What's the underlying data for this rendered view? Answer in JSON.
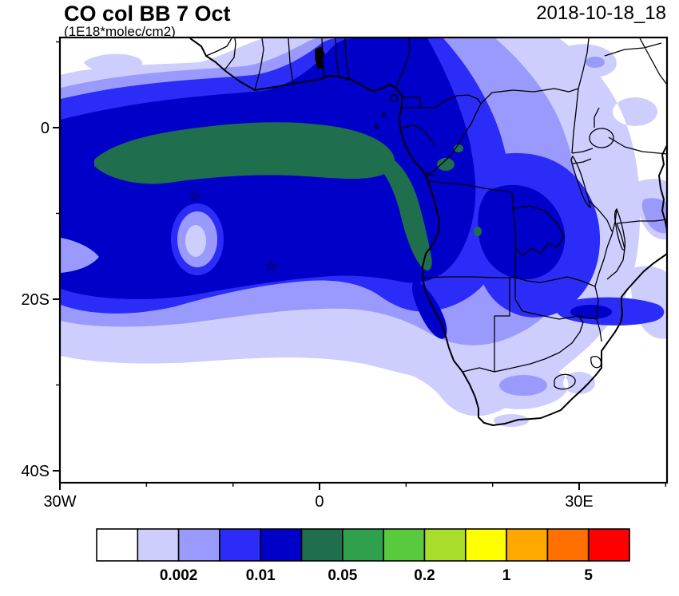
{
  "title": "CO col BB 7 Oct",
  "subtitle": "(1E18*molec/cm2)",
  "date_label": "2018-10-18_18",
  "map": {
    "x_axis": {
      "ticks": [
        {
          "label": "30W",
          "lon": -30
        },
        {
          "label": "0",
          "lon": 0
        },
        {
          "label": "30E",
          "lon": 30
        }
      ],
      "minor_lons": [
        -20,
        -10,
        10,
        20,
        40
      ]
    },
    "y_axis": {
      "ticks": [
        {
          "label": "0",
          "lat": 0
        },
        {
          "label": "20S",
          "lat": -20
        },
        {
          "label": "40S",
          "lat": -40
        }
      ],
      "minor_lats": [
        10,
        -10,
        -30
      ]
    }
  },
  "colorbar": {
    "boundary_labels": [
      {
        "label": "0.002",
        "boundary_index": 2
      },
      {
        "label": "0.01",
        "boundary_index": 4
      },
      {
        "label": "0.05",
        "boundary_index": 6
      },
      {
        "label": "0.2",
        "boundary_index": 8
      },
      {
        "label": "1",
        "boundary_index": 10
      },
      {
        "label": "5",
        "boundary_index": 12
      }
    ]
  },
  "chart_data": {
    "type": "heatmap",
    "title": "CO col BB 7 Oct",
    "units": "1E18*molec/cm2",
    "run_label": "2018-10-18_18",
    "variable": "CO column from biomass burning (filled contours over Africa / South Atlantic)",
    "projection": "lat-lon",
    "lon_range": [
      -30,
      40
    ],
    "lat_range": [
      -41.4,
      10.5
    ],
    "contour_levels": [
      0.001,
      0.002,
      0.005,
      0.01,
      0.02,
      0.05,
      0.1,
      0.2,
      0.5,
      1,
      2,
      5
    ],
    "labeled_levels": [
      "0.002",
      "0.01",
      "0.05",
      "0.2",
      "1",
      "5"
    ],
    "palette": [
      "#ffffff",
      "#cdcdfe",
      "#9a9afc",
      "#2c2cf8",
      "#0000c8",
      "#1f6e4e",
      "#2fa14d",
      "#59c93e",
      "#a8dd2c",
      "#ffff00",
      "#ffa900",
      "#ff7000",
      "#fd0000"
    ],
    "legend_position": "bottom",
    "grid": "off",
    "markers": [
      {
        "type": "star",
        "lon": -14.4,
        "lat": -7.9
      },
      {
        "type": "star",
        "lon": -5.6,
        "lat": -16.1
      }
    ],
    "features": [
      {
        "level_range": "0.05-0.2",
        "color": "#1f6e4e",
        "description": "Elongated maximum over the eastern tropical Atlantic from ~26W to ~8E between ~1S and 7S, with a coastal extension along the Gabon-Angola coast to ~14S and small patches over Congo"
      },
      {
        "level_range": "0.02-0.05",
        "color": "#0000c8",
        "description": "Broad plume covering the tropical South Atlantic and western central Africa from ~10N to ~20S, extending east over DRC/Zambia"
      },
      {
        "level_range": "0.01-0.02",
        "color": "#2c2cf8",
        "description": "Plume envelope reaching East Africa, Mozambique band near 22S, and ~25S over the Atlantic"
      },
      {
        "level_range": "0.002-0.01",
        "color": "#9a9afc",
        "description": "Outer envelope over most of the domain, small closed minimum oval near 15W/12S"
      },
      {
        "level_range": "0.001-0.002",
        "color": "#cdcdfe",
        "description": "Fringes over southern Africa, the northeast of the domain, and thin diagonal streaks over the SE Atlantic"
      }
    ]
  }
}
